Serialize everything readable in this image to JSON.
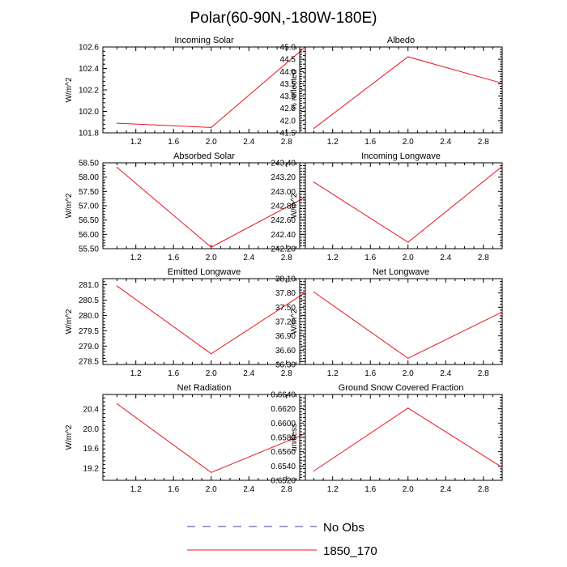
{
  "figure_title": "Polar(60-90N,-180W-180E)",
  "legend": [
    {
      "label": "No Obs",
      "color": "#3c3c9c",
      "dash": true
    },
    {
      "label": "1850_170",
      "color": "#e8141e",
      "dash": false
    }
  ],
  "chart_data": [
    {
      "type": "line",
      "title": "Incoming Solar",
      "ylabel": "W/m^2",
      "x": [
        1,
        2,
        3
      ],
      "xlim": [
        0.85,
        3.0
      ],
      "xticks": [
        "1.2",
        "1.6",
        "2.0",
        "2.4",
        "2.8"
      ],
      "xtick_values": [
        1.2,
        1.6,
        2.0,
        2.4,
        2.8
      ],
      "ylim": [
        101.8,
        102.6
      ],
      "yticks": [
        "101.8",
        "102.0",
        "102.2",
        "102.4",
        "102.6"
      ],
      "ytick_values": [
        101.8,
        102.0,
        102.2,
        102.4,
        102.6
      ],
      "series": [
        {
          "name": "1850_170",
          "values": [
            101.89,
            101.85,
            102.6
          ]
        }
      ]
    },
    {
      "type": "line",
      "title": "Albedo",
      "ylabel": "% reflected",
      "x": [
        1,
        2,
        3
      ],
      "xlim": [
        0.85,
        3.0
      ],
      "xticks": [
        "1.2",
        "1.6",
        "2.0",
        "2.4",
        "2.8"
      ],
      "xtick_values": [
        1.2,
        1.6,
        2.0,
        2.4,
        2.8
      ],
      "ylim": [
        41.5,
        45.0
      ],
      "yticks": [
        "41.5",
        "42.0",
        "42.5",
        "43.0",
        "43.5",
        "44.0",
        "44.5",
        "45.0"
      ],
      "ytick_values": [
        41.5,
        42.0,
        42.5,
        43.0,
        43.5,
        44.0,
        44.5,
        45.0
      ],
      "series": [
        {
          "name": "1850_170",
          "values": [
            41.68,
            44.6,
            43.52
          ]
        }
      ]
    },
    {
      "type": "line",
      "title": "Absorbed Solar",
      "ylabel": "W/m^2",
      "x": [
        1,
        2,
        3
      ],
      "xlim": [
        0.85,
        3.0
      ],
      "xticks": [
        "1.2",
        "1.6",
        "2.0",
        "2.4",
        "2.8"
      ],
      "xtick_values": [
        1.2,
        1.6,
        2.0,
        2.4,
        2.8
      ],
      "ylim": [
        55.5,
        58.5
      ],
      "yticks": [
        "55.50",
        "56.00",
        "56.50",
        "57.00",
        "57.50",
        "58.00",
        "58.50"
      ],
      "ytick_values": [
        55.5,
        56.0,
        56.5,
        57.0,
        57.5,
        58.0,
        58.5
      ],
      "series": [
        {
          "name": "1850_170",
          "values": [
            58.34,
            55.55,
            57.3
          ]
        }
      ]
    },
    {
      "type": "line",
      "title": "Incoming Longwave",
      "ylabel": "W/m^2",
      "x": [
        1,
        2,
        3
      ],
      "xlim": [
        0.85,
        3.0
      ],
      "xticks": [
        "1.2",
        "1.6",
        "2.0",
        "2.4",
        "2.8"
      ],
      "xtick_values": [
        1.2,
        1.6,
        2.0,
        2.4,
        2.8
      ],
      "ylim": [
        242.2,
        243.4
      ],
      "yticks": [
        "242.20",
        "242.40",
        "242.60",
        "242.80",
        "243.00",
        "243.20",
        "243.40"
      ],
      "ytick_values": [
        242.2,
        242.4,
        242.6,
        242.8,
        243.0,
        243.2,
        243.4
      ],
      "series": [
        {
          "name": "1850_170",
          "values": [
            243.13,
            242.29,
            243.35
          ]
        }
      ]
    },
    {
      "type": "line",
      "title": "Emitted Longwave",
      "ylabel": "W/m^2",
      "x": [
        1,
        2,
        3
      ],
      "xlim": [
        0.85,
        3.0
      ],
      "xticks": [
        "1.2",
        "1.6",
        "2.0",
        "2.4",
        "2.8"
      ],
      "xtick_values": [
        1.2,
        1.6,
        2.0,
        2.4,
        2.8
      ],
      "ylim": [
        278.4,
        281.2
      ],
      "yticks": [
        "278.5",
        "279.0",
        "279.5",
        "280.0",
        "280.5",
        "281.0"
      ],
      "ytick_values": [
        278.5,
        279.0,
        279.5,
        280.0,
        280.5,
        281.0
      ],
      "series": [
        {
          "name": "1850_170",
          "values": [
            280.96,
            278.75,
            280.75
          ]
        }
      ]
    },
    {
      "type": "line",
      "title": "Net Longwave",
      "ylabel": "W/m^2",
      "x": [
        1,
        2,
        3
      ],
      "xlim": [
        0.85,
        3.0
      ],
      "xticks": [
        "1.2",
        "1.6",
        "2.0",
        "2.4",
        "2.8"
      ],
      "xtick_values": [
        1.2,
        1.6,
        2.0,
        2.4,
        2.8
      ],
      "ylim": [
        36.3,
        38.1
      ],
      "yticks": [
        "36.30",
        "36.60",
        "36.90",
        "37.20",
        "37.50",
        "37.80",
        "38.10"
      ],
      "ytick_values": [
        36.3,
        36.6,
        36.9,
        37.2,
        37.5,
        37.8,
        38.1
      ],
      "series": [
        {
          "name": "1850_170",
          "values": [
            37.82,
            36.43,
            37.4
          ]
        }
      ]
    },
    {
      "type": "line",
      "title": "Net Radiation",
      "ylabel": "W/m^2",
      "x": [
        1,
        2,
        3
      ],
      "xlim": [
        0.85,
        3.0
      ],
      "xticks": [
        "1.2",
        "1.6",
        "2.0",
        "2.4",
        "2.8"
      ],
      "xtick_values": [
        1.2,
        1.6,
        2.0,
        2.4,
        2.8
      ],
      "ylim": [
        18.95,
        20.7
      ],
      "yticks": [
        "19.2",
        "19.6",
        "20.0",
        "20.4"
      ],
      "ytick_values": [
        19.2,
        19.6,
        20.0,
        20.4
      ],
      "series": [
        {
          "name": "1850_170",
          "values": [
            20.51,
            19.11,
            19.9
          ]
        }
      ]
    },
    {
      "type": "line",
      "title": "Ground Snow Covered Fraction",
      "ylabel": "unitless",
      "x": [
        1,
        2,
        3
      ],
      "xlim": [
        0.85,
        3.0
      ],
      "xticks": [
        "1.2",
        "1.6",
        "2.0",
        "2.4",
        "2.8"
      ],
      "xtick_values": [
        1.2,
        1.6,
        2.0,
        2.4,
        2.8
      ],
      "ylim": [
        0.652,
        0.664
      ],
      "yticks": [
        "0.6520",
        "0.6540",
        "0.6560",
        "0.6580",
        "0.6600",
        "0.6620",
        "0.6640"
      ],
      "ytick_values": [
        0.652,
        0.654,
        0.656,
        0.658,
        0.66,
        0.662,
        0.664
      ],
      "series": [
        {
          "name": "1850_170",
          "values": [
            0.6533,
            0.6621,
            0.6538
          ]
        }
      ]
    }
  ]
}
